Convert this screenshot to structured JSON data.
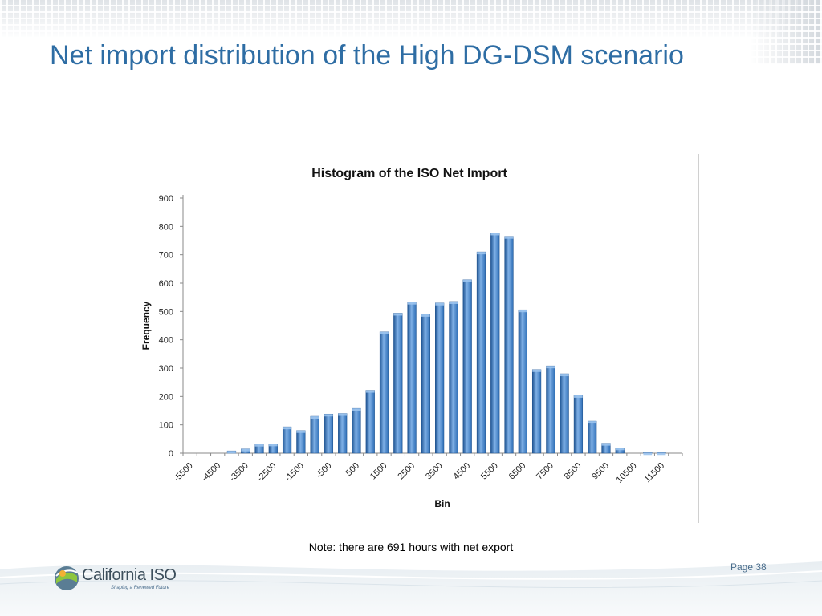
{
  "slide": {
    "title": "Net import distribution of the High DG-DSM scenario",
    "note": "Note: there are 691 hours with net export",
    "page_label": "Page 38"
  },
  "logo": {
    "name": "California ISO",
    "tagline": "Shaping a Renewed Future",
    "icon": "california-iso-logo-icon"
  },
  "colors": {
    "title": "#2e6da4",
    "bar": "#2f6fb7",
    "bar_highlight": "#7fb0e6"
  },
  "chart_data": {
    "type": "bar",
    "title": "Histogram of the ISO Net Import",
    "xlabel": "Bin",
    "ylabel": "Frequency",
    "ylim": [
      0,
      900
    ],
    "yticks": [
      0,
      100,
      200,
      300,
      400,
      500,
      600,
      700,
      800,
      900
    ],
    "grid": false,
    "categories": [
      -5500,
      -5000,
      -4500,
      -4000,
      -3500,
      -3000,
      -2500,
      -2000,
      -1500,
      -1000,
      -500,
      0,
      500,
      1000,
      1500,
      2000,
      2500,
      3000,
      3500,
      4000,
      4500,
      5000,
      5500,
      6000,
      6500,
      7000,
      7500,
      8000,
      8500,
      9000,
      9500,
      10000,
      10500,
      11000,
      11500,
      12000
    ],
    "xtick_labels": [
      "-5500",
      "-4500",
      "-3500",
      "-2500",
      "-1500",
      "-500",
      "500",
      "1500",
      "2500",
      "3500",
      "4500",
      "5500",
      "6500",
      "7500",
      "8500",
      "9500",
      "10500",
      "11500"
    ],
    "values": [
      0,
      0,
      0,
      8,
      15,
      32,
      33,
      93,
      80,
      130,
      138,
      140,
      158,
      222,
      428,
      494,
      533,
      490,
      530,
      535,
      612,
      710,
      777,
      765,
      506,
      295,
      308,
      280,
      204,
      113,
      35,
      19,
      0,
      2,
      2,
      0
    ]
  }
}
